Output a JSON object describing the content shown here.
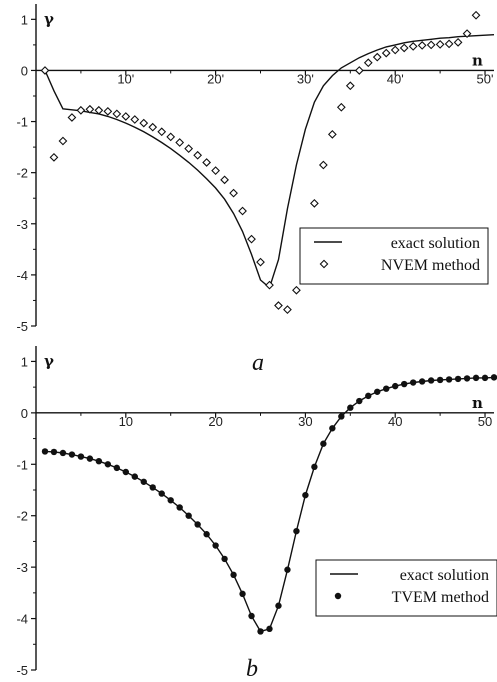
{
  "chart_data": [
    {
      "type": "line+scatter",
      "panel_label": "a",
      "xlabel": "n",
      "ylabel": "γ",
      "xlim": [
        0,
        51
      ],
      "ylim": [
        -5,
        1.3
      ],
      "xticks": [
        10,
        20,
        30,
        40,
        50
      ],
      "xtick_labels": [
        "10'",
        "20'",
        "30'",
        "40'",
        "50'"
      ],
      "yticks": [
        1,
        0,
        -1,
        -2,
        -3,
        -4,
        -5
      ],
      "grid": false,
      "legend_position": "lower-right",
      "series": [
        {
          "name": "exact solution",
          "style": "line",
          "x": [
            1,
            2,
            3,
            4,
            5,
            6,
            7,
            8,
            9,
            10,
            11,
            12,
            13,
            14,
            15,
            16,
            17,
            18,
            19,
            20,
            21,
            22,
            23,
            24,
            25,
            26,
            27,
            28,
            29,
            30,
            31,
            32,
            33,
            34,
            35,
            36,
            37,
            38,
            39,
            40,
            41,
            42,
            43,
            44,
            45,
            46,
            47,
            48,
            49,
            50,
            51
          ],
          "y": [
            0.0,
            -0.4,
            -0.75,
            -0.77,
            -0.79,
            -0.82,
            -0.85,
            -0.9,
            -0.96,
            -1.03,
            -1.11,
            -1.2,
            -1.3,
            -1.41,
            -1.53,
            -1.66,
            -1.8,
            -1.95,
            -2.12,
            -2.3,
            -2.52,
            -2.8,
            -3.15,
            -3.6,
            -4.1,
            -4.25,
            -3.7,
            -2.7,
            -1.85,
            -1.15,
            -0.62,
            -0.3,
            -0.1,
            0.05,
            0.15,
            0.25,
            0.33,
            0.4,
            0.46,
            0.5,
            0.54,
            0.57,
            0.59,
            0.61,
            0.63,
            0.64,
            0.66,
            0.67,
            0.68,
            0.69,
            0.7
          ]
        },
        {
          "name": "NVEM method",
          "style": "open-diamond",
          "x": [
            1,
            2,
            3,
            4,
            5,
            6,
            7,
            8,
            9,
            10,
            11,
            12,
            13,
            14,
            15,
            16,
            17,
            18,
            19,
            20,
            21,
            22,
            23,
            24,
            25,
            26,
            27,
            28,
            29,
            30,
            31,
            32,
            33,
            34,
            35,
            36,
            37,
            38,
            39,
            40,
            41,
            42,
            43,
            44,
            45,
            46,
            47,
            48,
            49
          ],
          "y": [
            0.0,
            -1.7,
            -1.38,
            -0.92,
            -0.78,
            -0.76,
            -0.78,
            -0.8,
            -0.85,
            -0.9,
            -0.96,
            -1.03,
            -1.11,
            -1.2,
            -1.3,
            -1.41,
            -1.53,
            -1.66,
            -1.8,
            -1.96,
            -2.14,
            -2.4,
            -2.75,
            -3.3,
            -3.75,
            -4.2,
            -4.6,
            -4.68,
            -4.3,
            -3.5,
            -2.6,
            -1.85,
            -1.25,
            -0.72,
            -0.3,
            0.0,
            0.15,
            0.26,
            0.34,
            0.4,
            0.44,
            0.47,
            0.49,
            0.5,
            0.51,
            0.52,
            0.55,
            0.72,
            1.08
          ]
        }
      ]
    },
    {
      "type": "line+scatter",
      "panel_label": "b",
      "xlabel": "n",
      "ylabel": "γ",
      "xlim": [
        0,
        51
      ],
      "ylim": [
        -5,
        1.3
      ],
      "xticks": [
        10,
        20,
        30,
        40,
        50
      ],
      "xtick_labels": [
        "10",
        "20",
        "30",
        "40",
        "50"
      ],
      "yticks": [
        1,
        0,
        -1,
        -2,
        -3,
        -4,
        -5
      ],
      "grid": false,
      "legend_position": "lower-right",
      "series": [
        {
          "name": "exact solution",
          "style": "line",
          "x": [
            1,
            2,
            3,
            4,
            5,
            6,
            7,
            8,
            9,
            10,
            11,
            12,
            13,
            14,
            15,
            16,
            17,
            18,
            19,
            20,
            21,
            22,
            23,
            24,
            25,
            26,
            27,
            28,
            29,
            30,
            31,
            32,
            33,
            34,
            35,
            36,
            37,
            38,
            39,
            40,
            41,
            42,
            43,
            44,
            45,
            46,
            47,
            48,
            49,
            50,
            51
          ],
          "y": [
            -0.75,
            -0.76,
            -0.78,
            -0.81,
            -0.85,
            -0.89,
            -0.94,
            -1.0,
            -1.07,
            -1.15,
            -1.24,
            -1.34,
            -1.45,
            -1.57,
            -1.7,
            -1.84,
            -2.0,
            -2.17,
            -2.36,
            -2.58,
            -2.84,
            -3.15,
            -3.52,
            -3.95,
            -4.25,
            -4.2,
            -3.75,
            -3.05,
            -2.3,
            -1.6,
            -1.05,
            -0.6,
            -0.3,
            -0.07,
            0.1,
            0.23,
            0.33,
            0.41,
            0.47,
            0.52,
            0.56,
            0.59,
            0.61,
            0.63,
            0.64,
            0.65,
            0.66,
            0.67,
            0.68,
            0.68,
            0.69
          ]
        },
        {
          "name": "TVEM method",
          "style": "filled-circle",
          "x": [
            1,
            2,
            3,
            4,
            5,
            6,
            7,
            8,
            9,
            10,
            11,
            12,
            13,
            14,
            15,
            16,
            17,
            18,
            19,
            20,
            21,
            22,
            23,
            24,
            25,
            26,
            27,
            28,
            29,
            30,
            31,
            32,
            33,
            34,
            35,
            36,
            37,
            38,
            39,
            40,
            41,
            42,
            43,
            44,
            45,
            46,
            47,
            48,
            49,
            50,
            51
          ],
          "y": [
            -0.75,
            -0.76,
            -0.78,
            -0.81,
            -0.85,
            -0.89,
            -0.94,
            -1.0,
            -1.07,
            -1.15,
            -1.24,
            -1.34,
            -1.45,
            -1.57,
            -1.7,
            -1.84,
            -2.0,
            -2.17,
            -2.36,
            -2.58,
            -2.84,
            -3.15,
            -3.52,
            -3.95,
            -4.25,
            -4.2,
            -3.75,
            -3.05,
            -2.3,
            -1.6,
            -1.05,
            -0.6,
            -0.3,
            -0.07,
            0.1,
            0.23,
            0.33,
            0.41,
            0.47,
            0.52,
            0.56,
            0.59,
            0.61,
            0.63,
            0.64,
            0.65,
            0.66,
            0.67,
            0.68,
            0.68,
            0.69
          ]
        }
      ]
    }
  ]
}
